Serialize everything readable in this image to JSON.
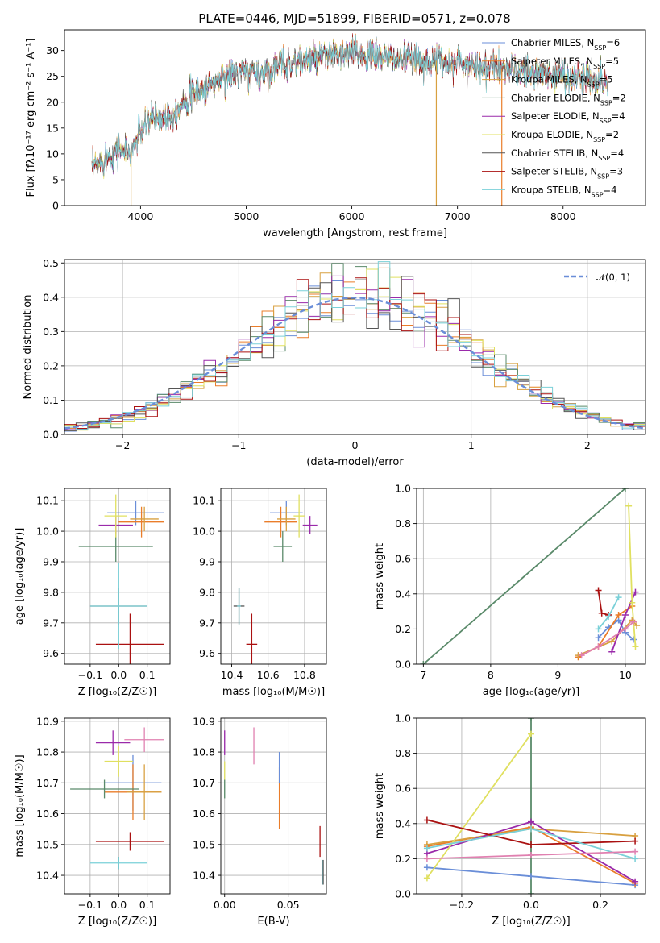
{
  "title": "PLATE=0446, MJD=51899, FIBERID=0571, z=0.078",
  "colors": [
    "#6a8ed8",
    "#ea7d2a",
    "#d8a040",
    "#5a8a6a",
    "#9a2aaa",
    "#e0e060",
    "#555555",
    "#aa1111",
    "#7ad0d8"
  ],
  "chart_data": [
    {
      "id": "spectrum",
      "type": "line",
      "xlabel": "wavelength [Angstrom, rest frame]",
      "ylabel": "Flux [f$_\\lambda$10$^{-17}$ erg cm$^{-2}$ s$^{-1}$ A$^{-1}$]",
      "ylabel_text": "Flux [fλ10⁻¹⁷ erg cm⁻² s⁻¹ A⁻¹]",
      "xlim": [
        3280,
        8780
      ],
      "ylim": [
        0,
        34
      ],
      "xticks": [
        4000,
        5000,
        6000,
        7000,
        8000
      ],
      "yticks": [
        0,
        5,
        10,
        15,
        20,
        25,
        30
      ],
      "grid": false,
      "legend_position": "upper right",
      "legend": [
        {
          "label": "Chabrier MILES, N",
          "sub": "SSP",
          "suffix": "=6",
          "color": "#6a8ed8"
        },
        {
          "label": "Salpeter MILES, N",
          "sub": "SSP",
          "suffix": "=5",
          "color": "#ea7d2a"
        },
        {
          "label": "Kroupa MILES, N",
          "sub": "SSP",
          "suffix": "=5",
          "color": "#d8a040"
        },
        {
          "label": "Chabrier ELODIE, N",
          "sub": "SSP",
          "suffix": "=2",
          "color": "#5a8a6a"
        },
        {
          "label": "Salpeter ELODIE, N",
          "sub": "SSP",
          "suffix": "=4",
          "color": "#9a2aaa"
        },
        {
          "label": "Kroupa ELODIE, N",
          "sub": "SSP",
          "suffix": "=2",
          "color": "#e0e060"
        },
        {
          "label": "Chabrier STELIB, N",
          "sub": "SSP",
          "suffix": "=4",
          "color": "#555555"
        },
        {
          "label": "Salpeter STELIB, N",
          "sub": "SSP",
          "suffix": "=3",
          "color": "#aa1111"
        },
        {
          "label": "Kroupa STELIB, N",
          "sub": "SSP",
          "suffix": "=4",
          "color": "#7ad0d8"
        }
      ],
      "continuum_x": [
        3540,
        3650,
        3800,
        3900,
        4000,
        4100,
        4200,
        4300,
        4400,
        4500,
        4600,
        4700,
        4800,
        4900,
        5000,
        5100,
        5200,
        5300,
        5400,
        5500,
        5600,
        5700,
        5800,
        5900,
        6000,
        6200,
        6400,
        6600,
        6800,
        7000,
        7200,
        7400,
        7600,
        7800,
        8000,
        8200,
        8400
      ],
      "continuum_y": [
        7,
        9,
        11,
        10,
        14,
        17,
        17,
        17.5,
        20,
        21.5,
        22.5,
        24,
        25,
        25.5,
        26,
        25.5,
        26,
        27,
        27.5,
        28,
        28,
        28.5,
        29,
        29,
        29.5,
        29,
        28.5,
        28,
        28,
        27.5,
        27,
        26.5,
        26,
        25.5,
        25,
        24.5,
        24
      ],
      "drop_lines": [
        3910,
        6800,
        7420
      ]
    },
    {
      "id": "residuals",
      "type": "histogram",
      "xlabel": "(data-model)/error",
      "ylabel": "Normed distribution",
      "xlim": [
        -2.5,
        2.5
      ],
      "ylim": [
        0,
        0.51
      ],
      "xticks": [
        -2,
        -1,
        0,
        1,
        2
      ],
      "yticks": [
        0,
        0.1,
        0.2,
        0.3,
        0.4,
        0.5
      ],
      "grid": true,
      "legend_position": "upper right",
      "legend": [
        {
          "label": "𝒩(0, 1)",
          "color": "#6a8ed8",
          "style": "dashed"
        }
      ],
      "bin_width": 0.1
    },
    {
      "id": "age_vs_Z",
      "type": "scatter",
      "xlabel": "Z [log₁₀(Z/Z☉)]",
      "ylabel": "age  [log₁₀(age/yr)]",
      "xlim": [
        -0.19,
        0.18
      ],
      "ylim": [
        9.565,
        10.14
      ],
      "xticks": [
        -0.1,
        0.0,
        0.1
      ],
      "yticks": [
        9.6,
        9.7,
        9.8,
        9.9,
        10.0,
        10.1
      ],
      "grid": true,
      "points": [
        {
          "x": 0.06,
          "y": 10.06,
          "xerr": 0.1,
          "yerr": 0.04,
          "color": "#6a8ed8"
        },
        {
          "x": 0.08,
          "y": 10.03,
          "xerr": 0.08,
          "yerr": 0.05,
          "color": "#ea7d2a"
        },
        {
          "x": 0.09,
          "y": 10.04,
          "xerr": 0.05,
          "yerr": 0.04,
          "color": "#d8a040"
        },
        {
          "x": -0.01,
          "y": 9.95,
          "xerr": 0.13,
          "yerr": 0.05,
          "color": "#5a8a6a"
        },
        {
          "x": -0.01,
          "y": 10.02,
          "xerr": 0.06,
          "yerr": 0.03,
          "color": "#9a2aaa"
        },
        {
          "x": -0.01,
          "y": 10.05,
          "xerr": 0.04,
          "yerr": 0.07,
          "color": "#e0e060"
        },
        {
          "x": 0.0,
          "y": 9.755,
          "xerr": 0.1,
          "yerr": 0.06,
          "color": "#555555"
        },
        {
          "x": 0.04,
          "y": 9.63,
          "xerr": 0.12,
          "yerr": 0.1,
          "color": "#aa1111"
        },
        {
          "x": 0.0,
          "y": 9.755,
          "xerr": 0.1,
          "yerr": 0.14,
          "color": "#7ad0d8"
        }
      ]
    },
    {
      "id": "age_vs_mass",
      "type": "scatter",
      "xlabel": "mass [log₁₀(M/M☉)]",
      "ylabel": "",
      "xlim": [
        10.34,
        10.92
      ],
      "ylim": [
        9.565,
        10.14
      ],
      "xticks": [
        10.4,
        10.6,
        10.8
      ],
      "yticks": [
        9.6,
        9.7,
        9.8,
        9.9,
        10.0,
        10.1
      ],
      "grid": true,
      "points": [
        {
          "x": 10.7,
          "y": 10.06,
          "xerr": 0.09,
          "yerr": 0.04,
          "color": "#6a8ed8"
        },
        {
          "x": 10.67,
          "y": 10.03,
          "xerr": 0.09,
          "yerr": 0.05,
          "color": "#ea7d2a"
        },
        {
          "x": 10.7,
          "y": 10.04,
          "xerr": 0.05,
          "yerr": 0.04,
          "color": "#d8a040"
        },
        {
          "x": 10.68,
          "y": 9.95,
          "xerr": 0.05,
          "yerr": 0.05,
          "color": "#5a8a6a"
        },
        {
          "x": 10.83,
          "y": 10.02,
          "xerr": 0.04,
          "yerr": 0.03,
          "color": "#9a2aaa"
        },
        {
          "x": 10.77,
          "y": 10.05,
          "xerr": 0.03,
          "yerr": 0.07,
          "color": "#e0e060"
        },
        {
          "x": 10.44,
          "y": 9.755,
          "xerr": 0.03,
          "yerr": 0.06,
          "color": "#555555"
        },
        {
          "x": 10.51,
          "y": 9.63,
          "xerr": 0.03,
          "yerr": 0.1,
          "color": "#aa1111"
        },
        {
          "x": 10.44,
          "y": 9.755,
          "xerr": 0.01,
          "yerr": 0.06,
          "color": "#7ad0d8"
        }
      ]
    },
    {
      "id": "weight_vs_age",
      "type": "line",
      "xlabel": "age  [log₁₀(age/yr)]",
      "ylabel": "mass weight",
      "xlim": [
        6.9,
        10.3
      ],
      "ylim": [
        0,
        1.0
      ],
      "xticks": [
        7,
        8,
        9,
        10
      ],
      "yticks": [
        0.0,
        0.2,
        0.4,
        0.6,
        0.8,
        1.0
      ],
      "grid": true,
      "series": [
        {
          "color": "#5a8a6a",
          "x": [
            7.0,
            10.0
          ],
          "y": [
            0.0,
            1.0
          ]
        },
        {
          "color": "#6a8ed8",
          "x": [
            9.6,
            9.75,
            9.9,
            10.0,
            10.12
          ],
          "y": [
            0.15,
            0.21,
            0.25,
            0.18,
            0.14
          ]
        },
        {
          "color": "#ea7d2a",
          "x": [
            9.3,
            9.6,
            9.9,
            10.1
          ],
          "y": [
            0.04,
            0.1,
            0.28,
            0.33
          ]
        },
        {
          "color": "#d8a040",
          "x": [
            9.3,
            9.8,
            10.1,
            10.17
          ],
          "y": [
            0.05,
            0.13,
            0.25,
            0.22
          ]
        },
        {
          "color": "#9a2aaa",
          "x": [
            9.8,
            10.0,
            10.15
          ],
          "y": [
            0.07,
            0.28,
            0.41
          ]
        },
        {
          "color": "#e0e060",
          "x": [
            10.05,
            10.1,
            10.15
          ],
          "y": [
            0.9,
            0.35,
            0.1
          ]
        },
        {
          "color": "#aa1111",
          "x": [
            9.6,
            9.65,
            9.75
          ],
          "y": [
            0.42,
            0.29,
            0.28
          ]
        },
        {
          "color": "#7ad0d8",
          "x": [
            9.6,
            9.75,
            9.9
          ],
          "y": [
            0.2,
            0.27,
            0.38
          ]
        },
        {
          "color": "#e080b0",
          "x": [
            9.35,
            9.6,
            10.0,
            10.12
          ],
          "y": [
            0.05,
            0.1,
            0.2,
            0.24
          ]
        }
      ]
    },
    {
      "id": "mass_vs_Z",
      "type": "scatter",
      "xlabel": "Z [log₁₀(Z/Z☉)]",
      "ylabel": "mass [log₁₀(M/M☉)]",
      "xlim": [
        -0.19,
        0.18
      ],
      "ylim": [
        10.34,
        10.91
      ],
      "xticks": [
        -0.1,
        0.0,
        0.1
      ],
      "yticks": [
        10.4,
        10.5,
        10.6,
        10.7,
        10.8,
        10.9
      ],
      "grid": true,
      "points": [
        {
          "x": 0.05,
          "y": 10.7,
          "xerr": 0.1,
          "yerr": 0.09,
          "color": "#6a8ed8"
        },
        {
          "x": 0.05,
          "y": 10.67,
          "xerr": 0.1,
          "yerr": 0.09,
          "color": "#ea7d2a"
        },
        {
          "x": 0.09,
          "y": 10.67,
          "xerr": 0.06,
          "yerr": 0.09,
          "color": "#d8a040"
        },
        {
          "x": -0.05,
          "y": 10.68,
          "xerr": 0.12,
          "yerr": 0.03,
          "color": "#5a8a6a"
        },
        {
          "x": -0.02,
          "y": 10.83,
          "xerr": 0.06,
          "yerr": 0.04,
          "color": "#9a2aaa"
        },
        {
          "x": 0.0,
          "y": 10.77,
          "xerr": 0.05,
          "yerr": 0.05,
          "color": "#e0e060"
        },
        {
          "x": 0.0,
          "y": 10.44,
          "xerr": 0.0,
          "yerr": 0.02,
          "color": "#555555"
        },
        {
          "x": 0.04,
          "y": 10.51,
          "xerr": 0.12,
          "yerr": 0.03,
          "color": "#aa1111"
        },
        {
          "x": 0.0,
          "y": 10.44,
          "xerr": 0.1,
          "yerr": 0.02,
          "color": "#7ad0d8"
        },
        {
          "x": 0.09,
          "y": 10.84,
          "xerr": 0.07,
          "yerr": 0.04,
          "color": "#e080b0"
        }
      ]
    },
    {
      "id": "mass_vs_ebv",
      "type": "scatter",
      "xlabel": "E(B-V)",
      "ylabel": "",
      "xlim": [
        -0.003,
        0.08
      ],
      "ylim": [
        10.34,
        10.91
      ],
      "xticks": [
        0.0,
        0.05
      ],
      "xticklabels": [
        "0.00",
        "0.05"
      ],
      "yticks": [
        10.4,
        10.5,
        10.6,
        10.7,
        10.8,
        10.9
      ],
      "grid": true,
      "points": [
        {
          "x": 0.0,
          "y": 10.83,
          "xerr": 0,
          "yerr": 0.04,
          "color": "#9a2aaa"
        },
        {
          "x": 0.0,
          "y": 10.68,
          "xerr": 0,
          "yerr": 0.03,
          "color": "#5a8a6a"
        },
        {
          "x": 0.0,
          "y": 10.74,
          "xerr": 0,
          "yerr": 0.03,
          "color": "#e0e060"
        },
        {
          "x": 0.023,
          "y": 10.82,
          "xerr": 0,
          "yerr": 0.06,
          "color": "#e080b0"
        },
        {
          "x": 0.043,
          "y": 10.65,
          "xerr": 0,
          "yerr": 0.1,
          "color": "#ea7d2a"
        },
        {
          "x": 0.043,
          "y": 10.75,
          "xerr": 0,
          "yerr": 0.05,
          "color": "#6a8ed8"
        },
        {
          "x": 0.075,
          "y": 10.51,
          "xerr": 0,
          "yerr": 0.05,
          "color": "#aa1111"
        },
        {
          "x": 0.077,
          "y": 10.41,
          "xerr": 0,
          "yerr": 0.04,
          "color": "#7ad0d8"
        },
        {
          "x": 0.0775,
          "y": 10.41,
          "xerr": 0,
          "yerr": 0.04,
          "color": "#555555"
        }
      ]
    },
    {
      "id": "weight_vs_Z",
      "type": "line",
      "xlabel": "Z [log₁₀(Z/Z☉)]",
      "ylabel": "mass weight",
      "xlim": [
        -0.33,
        0.33
      ],
      "ylim": [
        0,
        1.0
      ],
      "xticks": [
        -0.2,
        0.0,
        0.2
      ],
      "yticks": [
        0.0,
        0.2,
        0.4,
        0.6,
        0.8,
        1.0
      ],
      "grid": true,
      "series": [
        {
          "color": "#5a8a6a",
          "x": [
            0.0,
            0.0
          ],
          "y": [
            0.0,
            1.0
          ]
        },
        {
          "color": "#6a8ed8",
          "x": [
            -0.3,
            0.0,
            0.3
          ],
          "y": [
            0.15,
            0.1,
            0.05
          ]
        },
        {
          "color": "#ea7d2a",
          "x": [
            -0.3,
            0.0,
            0.3
          ],
          "y": [
            0.27,
            0.38,
            0.06
          ]
        },
        {
          "color": "#d8a040",
          "x": [
            -0.3,
            0.0,
            0.3
          ],
          "y": [
            0.28,
            0.37,
            0.33
          ]
        },
        {
          "color": "#9a2aaa",
          "x": [
            -0.3,
            0.0,
            0.3
          ],
          "y": [
            0.23,
            0.41,
            0.07
          ]
        },
        {
          "color": "#e0e060",
          "x": [
            -0.3,
            0.0
          ],
          "y": [
            0.09,
            0.91
          ]
        },
        {
          "color": "#aa1111",
          "x": [
            -0.3,
            0.0,
            0.3
          ],
          "y": [
            0.42,
            0.28,
            0.3
          ]
        },
        {
          "color": "#7ad0d8",
          "x": [
            -0.3,
            0.0,
            0.3
          ],
          "y": [
            0.26,
            0.37,
            0.2
          ]
        },
        {
          "color": "#e080b0",
          "x": [
            -0.3,
            0.0,
            0.3
          ],
          "y": [
            0.2,
            0.22,
            0.24
          ]
        }
      ]
    }
  ]
}
